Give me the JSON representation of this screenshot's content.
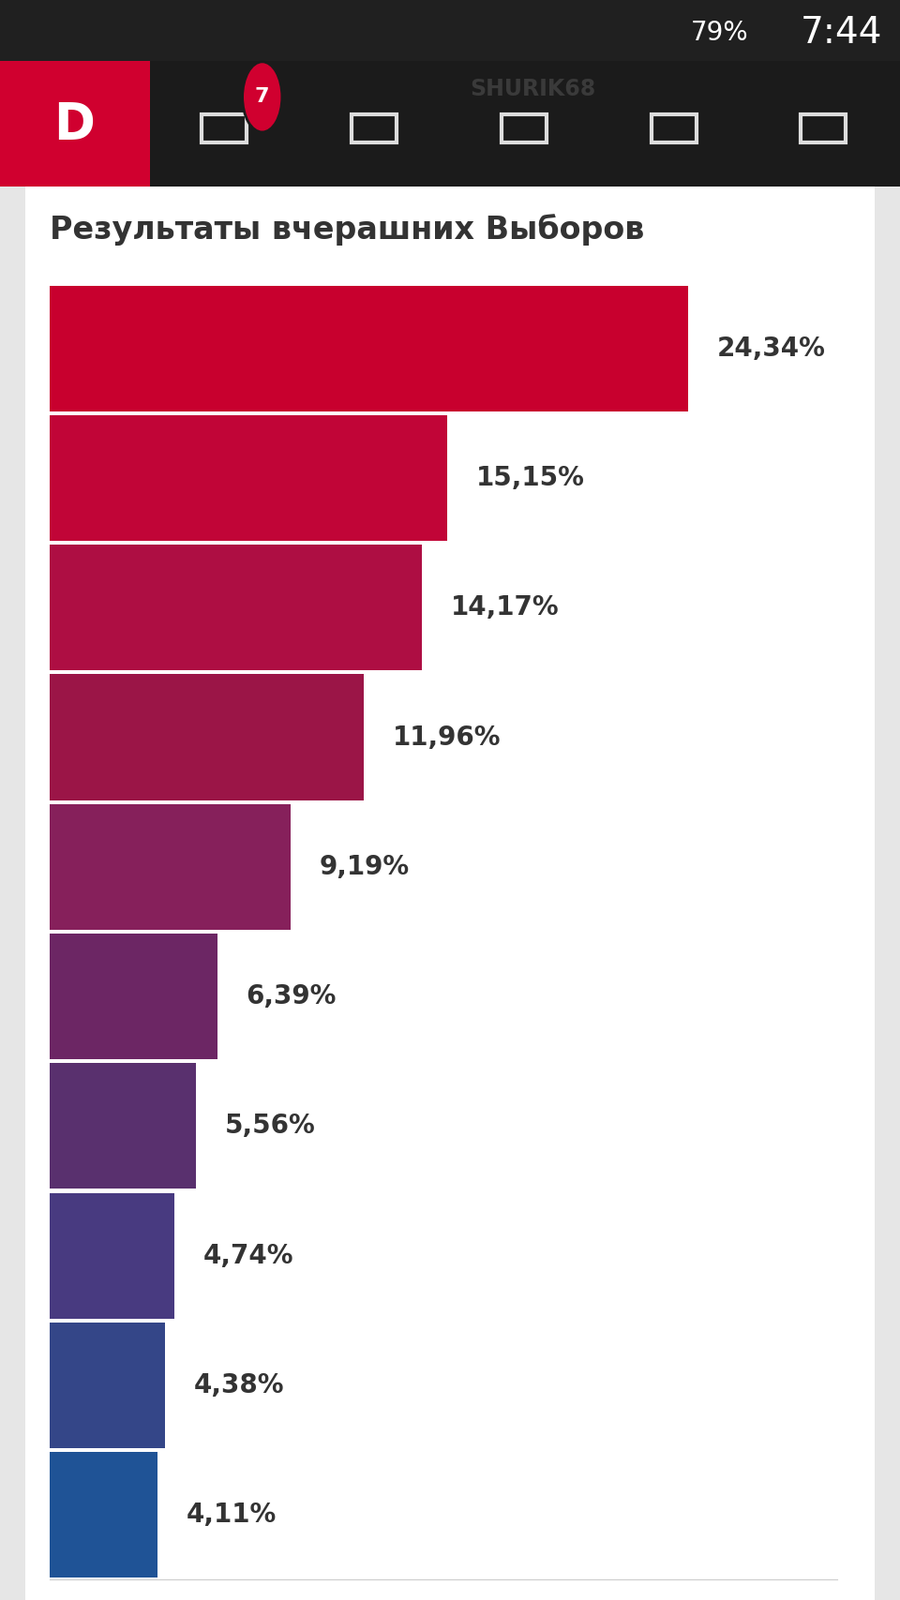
{
  "status_bar": {
    "battery": "79%",
    "time": "7:44"
  },
  "app_bar": {
    "logo": "D",
    "badge": 7,
    "user": "SHURIK68"
  },
  "chart_data": {
    "type": "bar",
    "orientation": "horizontal",
    "title": "Результаты вчерашних Выборов",
    "categories": [
      null,
      null,
      null,
      null,
      null,
      null,
      null,
      null,
      null,
      null
    ],
    "values": [
      24.34,
      15.15,
      14.17,
      11.96,
      9.19,
      6.39,
      5.56,
      4.74,
      4.38,
      4.11
    ],
    "value_labels": [
      "24,34%",
      "15,15%",
      "14,17%",
      "11,96%",
      "9,19%",
      "6,39%",
      "5,56%",
      "4,74%",
      "4,38%",
      "4,11%"
    ],
    "colors": [
      "#c8002e",
      "#c10537",
      "#ae0e43",
      "#9b1547",
      "#86205b",
      "#6c2664",
      "#59306e",
      "#483a80",
      "#344688",
      "#1f5396"
    ],
    "xlim": [
      0,
      30
    ],
    "xticks": [],
    "data_labels": true,
    "tick_labels": false,
    "grid": false
  }
}
